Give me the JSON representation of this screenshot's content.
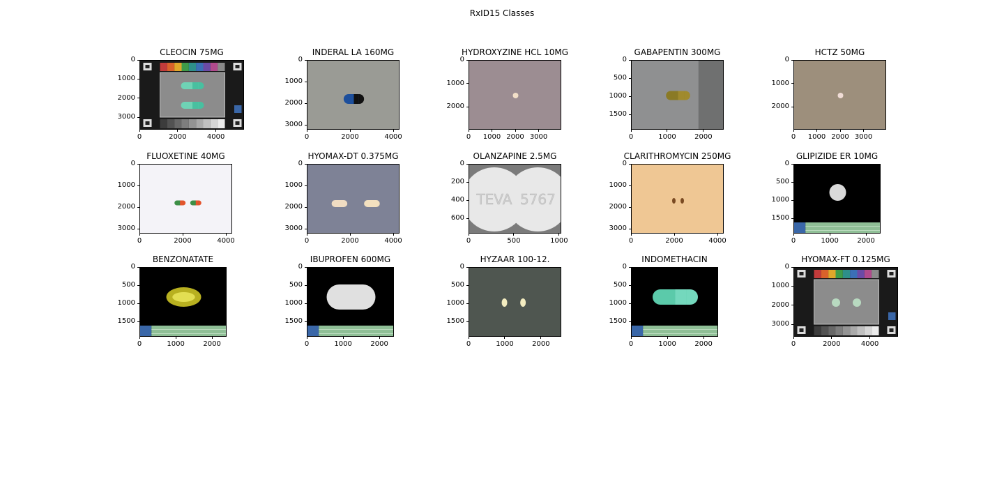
{
  "figure_title": "RxID15 Classes",
  "chart_data": [
    {
      "type": "image",
      "title": "CLEOCIN 75MG",
      "xticks": [
        "0",
        "2000",
        "4000"
      ],
      "yticks": [
        "0",
        "1000",
        "2000",
        "3000"
      ],
      "xlim": [
        0,
        5472
      ],
      "ylim": [
        3648,
        0
      ],
      "background": "#1a1a1a",
      "scene": "card"
    },
    {
      "type": "image",
      "title": "INDERAL LA 160MG",
      "xticks": [
        "0",
        "2000",
        "4000"
      ],
      "yticks": [
        "0",
        "1000",
        "2000",
        "3000"
      ],
      "xlim": [
        0,
        4288
      ],
      "ylim": [
        3216,
        0
      ],
      "background": "#9a9b95",
      "scene": "capsule-blue"
    },
    {
      "type": "image",
      "title": "HYDROXYZINE HCL 10MG",
      "xticks": [
        "0",
        "1000",
        "2000",
        "3000"
      ],
      "yticks": [
        "0",
        "1000",
        "2000"
      ],
      "xlim": [
        0,
        3968
      ],
      "ylim": [
        2976,
        0
      ],
      "background": "#9c8d92",
      "scene": "small-round"
    },
    {
      "type": "image",
      "title": "GABAPENTIN 300MG",
      "xticks": [
        "0",
        "1000",
        "2000"
      ],
      "yticks": [
        "0",
        "500",
        "1000",
        "1500"
      ],
      "xlim": [
        0,
        2560
      ],
      "ylim": [
        1920,
        0
      ],
      "background": "#8f9091",
      "scene": "capsule-olive"
    },
    {
      "type": "image",
      "title": "HCTZ 50MG",
      "xticks": [
        "0",
        "1000",
        "2000",
        "3000"
      ],
      "yticks": [
        "0",
        "1000",
        "2000"
      ],
      "xlim": [
        0,
        3968
      ],
      "ylim": [
        2976,
        0
      ],
      "background": "#9d8f7c",
      "scene": "small-round-pink"
    },
    {
      "type": "image",
      "title": "FLUOXETINE 40MG",
      "xticks": [
        "0",
        "2000",
        "4000"
      ],
      "yticks": [
        "0",
        "1000",
        "2000",
        "3000"
      ],
      "xlim": [
        0,
        4288
      ],
      "ylim": [
        3216,
        0
      ],
      "background": "#f4f3f8",
      "scene": "capsule-pair"
    },
    {
      "type": "image",
      "title": "HYOMAX-DT 0.375MG",
      "xticks": [
        "0",
        "2000",
        "4000"
      ],
      "yticks": [
        "0",
        "1000",
        "2000",
        "3000"
      ],
      "xlim": [
        0,
        4288
      ],
      "ylim": [
        3216,
        0
      ],
      "background": "#7e8296",
      "scene": "oval-pair"
    },
    {
      "type": "image",
      "title": "OLANZAPINE 2.5MG",
      "xticks": [
        "0",
        "500",
        "1000"
      ],
      "yticks": [
        "0",
        "200",
        "400",
        "600"
      ],
      "xlim": [
        0,
        1024
      ],
      "ylim": [
        768,
        0
      ],
      "background": "#7b7b7b",
      "scene": "closeup",
      "imprint": [
        "TEVA",
        "5767"
      ]
    },
    {
      "type": "image",
      "title": "CLARITHROMYCIN 250MG",
      "xticks": [
        "0",
        "2000",
        "4000"
      ],
      "yticks": [
        "0",
        "1000",
        "2000",
        "3000"
      ],
      "xlim": [
        0,
        4288
      ],
      "ylim": [
        3216,
        0
      ],
      "background": "#efc794",
      "scene": "tiny-pair"
    },
    {
      "type": "image",
      "title": "GLIPIZIDE ER 10MG",
      "xticks": [
        "0",
        "1000",
        "2000"
      ],
      "yticks": [
        "0",
        "500",
        "1000",
        "1500"
      ],
      "xlim": [
        0,
        2400
      ],
      "ylim": [
        1920,
        0
      ],
      "background": "#000000",
      "scene": "round-white"
    },
    {
      "type": "image",
      "title": "BENZONATATE",
      "xticks": [
        "0",
        "1000",
        "2000"
      ],
      "yticks": [
        "0",
        "500",
        "1000",
        "1500"
      ],
      "xlim": [
        0,
        2400
      ],
      "ylim": [
        1920,
        0
      ],
      "background": "#000000",
      "scene": "softgel"
    },
    {
      "type": "image",
      "title": "IBUPROFEN 600MG",
      "xticks": [
        "0",
        "1000",
        "2000"
      ],
      "yticks": [
        "0",
        "500",
        "1000",
        "1500"
      ],
      "xlim": [
        0,
        2400
      ],
      "ylim": [
        1920,
        0
      ],
      "background": "#000000",
      "scene": "caplet-white"
    },
    {
      "type": "image",
      "title": "HYZAAR 100-12.",
      "xticks": [
        "0",
        "1000",
        "2000"
      ],
      "yticks": [
        "0",
        "500",
        "1000",
        "1500"
      ],
      "xlim": [
        0,
        2560
      ],
      "ylim": [
        1920,
        0
      ],
      "background": "#4f5650",
      "scene": "oval-yellow-pair"
    },
    {
      "type": "image",
      "title": "INDOMETHACIN",
      "xticks": [
        "0",
        "1000",
        "2000"
      ],
      "yticks": [
        "0",
        "500",
        "1000",
        "1500"
      ],
      "xlim": [
        0,
        2400
      ],
      "ylim": [
        1920,
        0
      ],
      "background": "#000000",
      "scene": "capsule-teal"
    },
    {
      "type": "image",
      "title": "HYOMAX-FT 0.125MG",
      "xticks": [
        "0",
        "2000",
        "4000"
      ],
      "yticks": [
        "0",
        "1000",
        "2000",
        "3000"
      ],
      "xlim": [
        0,
        5472
      ],
      "ylim": [
        3648,
        0
      ],
      "background": "#1a1a1a",
      "scene": "card-round"
    }
  ]
}
